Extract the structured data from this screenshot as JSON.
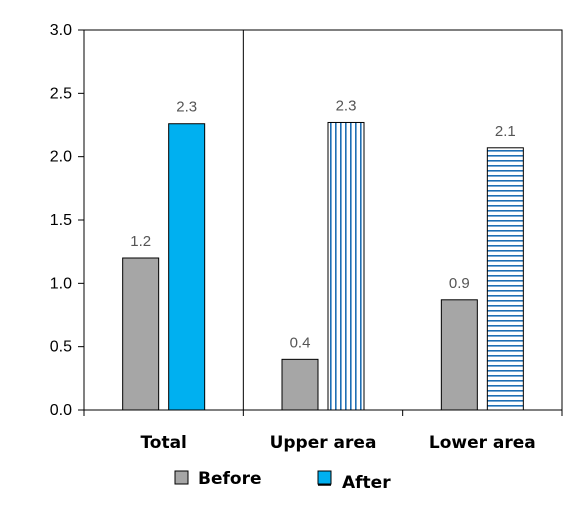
{
  "chart_data": {
    "type": "bar",
    "categories": [
      "Total",
      "Upper area",
      "Lower area"
    ],
    "series": [
      {
        "name": "Before",
        "values": [
          1.2,
          0.4,
          0.87
        ],
        "labels": [
          "1.2",
          "0.4",
          "0.9"
        ]
      },
      {
        "name": "After",
        "values": [
          2.26,
          2.27,
          2.07
        ],
        "labels": [
          "2.3",
          "2.3",
          "2.1"
        ]
      }
    ],
    "ylim": [
      0,
      3.0
    ],
    "yticks": [
      "0.0",
      "0.5",
      "1.0",
      "1.5",
      "2.0",
      "2.5",
      "3.0"
    ],
    "grid": false,
    "legend": "bottom",
    "colors": {
      "before": "#a6a6a6",
      "after": "#00b0f0",
      "after_pattern": "#1e6fb5",
      "frame": "#000000"
    },
    "after_fill": [
      "solid",
      "vertical-stripes",
      "horizontal-stripes"
    ]
  }
}
